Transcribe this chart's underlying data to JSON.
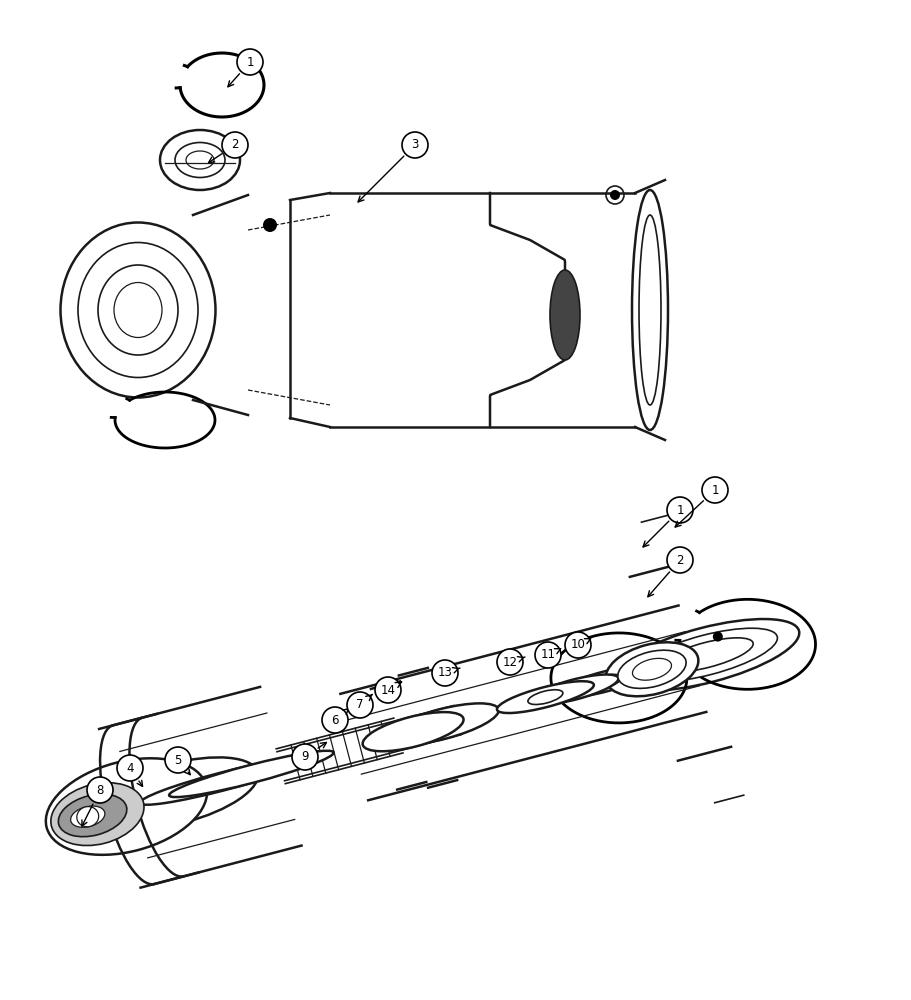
{
  "bg_color": "#ffffff",
  "line_color": "#1a1a1a",
  "fig_width": 9.12,
  "fig_height": 10.0,
  "dpi": 100
}
